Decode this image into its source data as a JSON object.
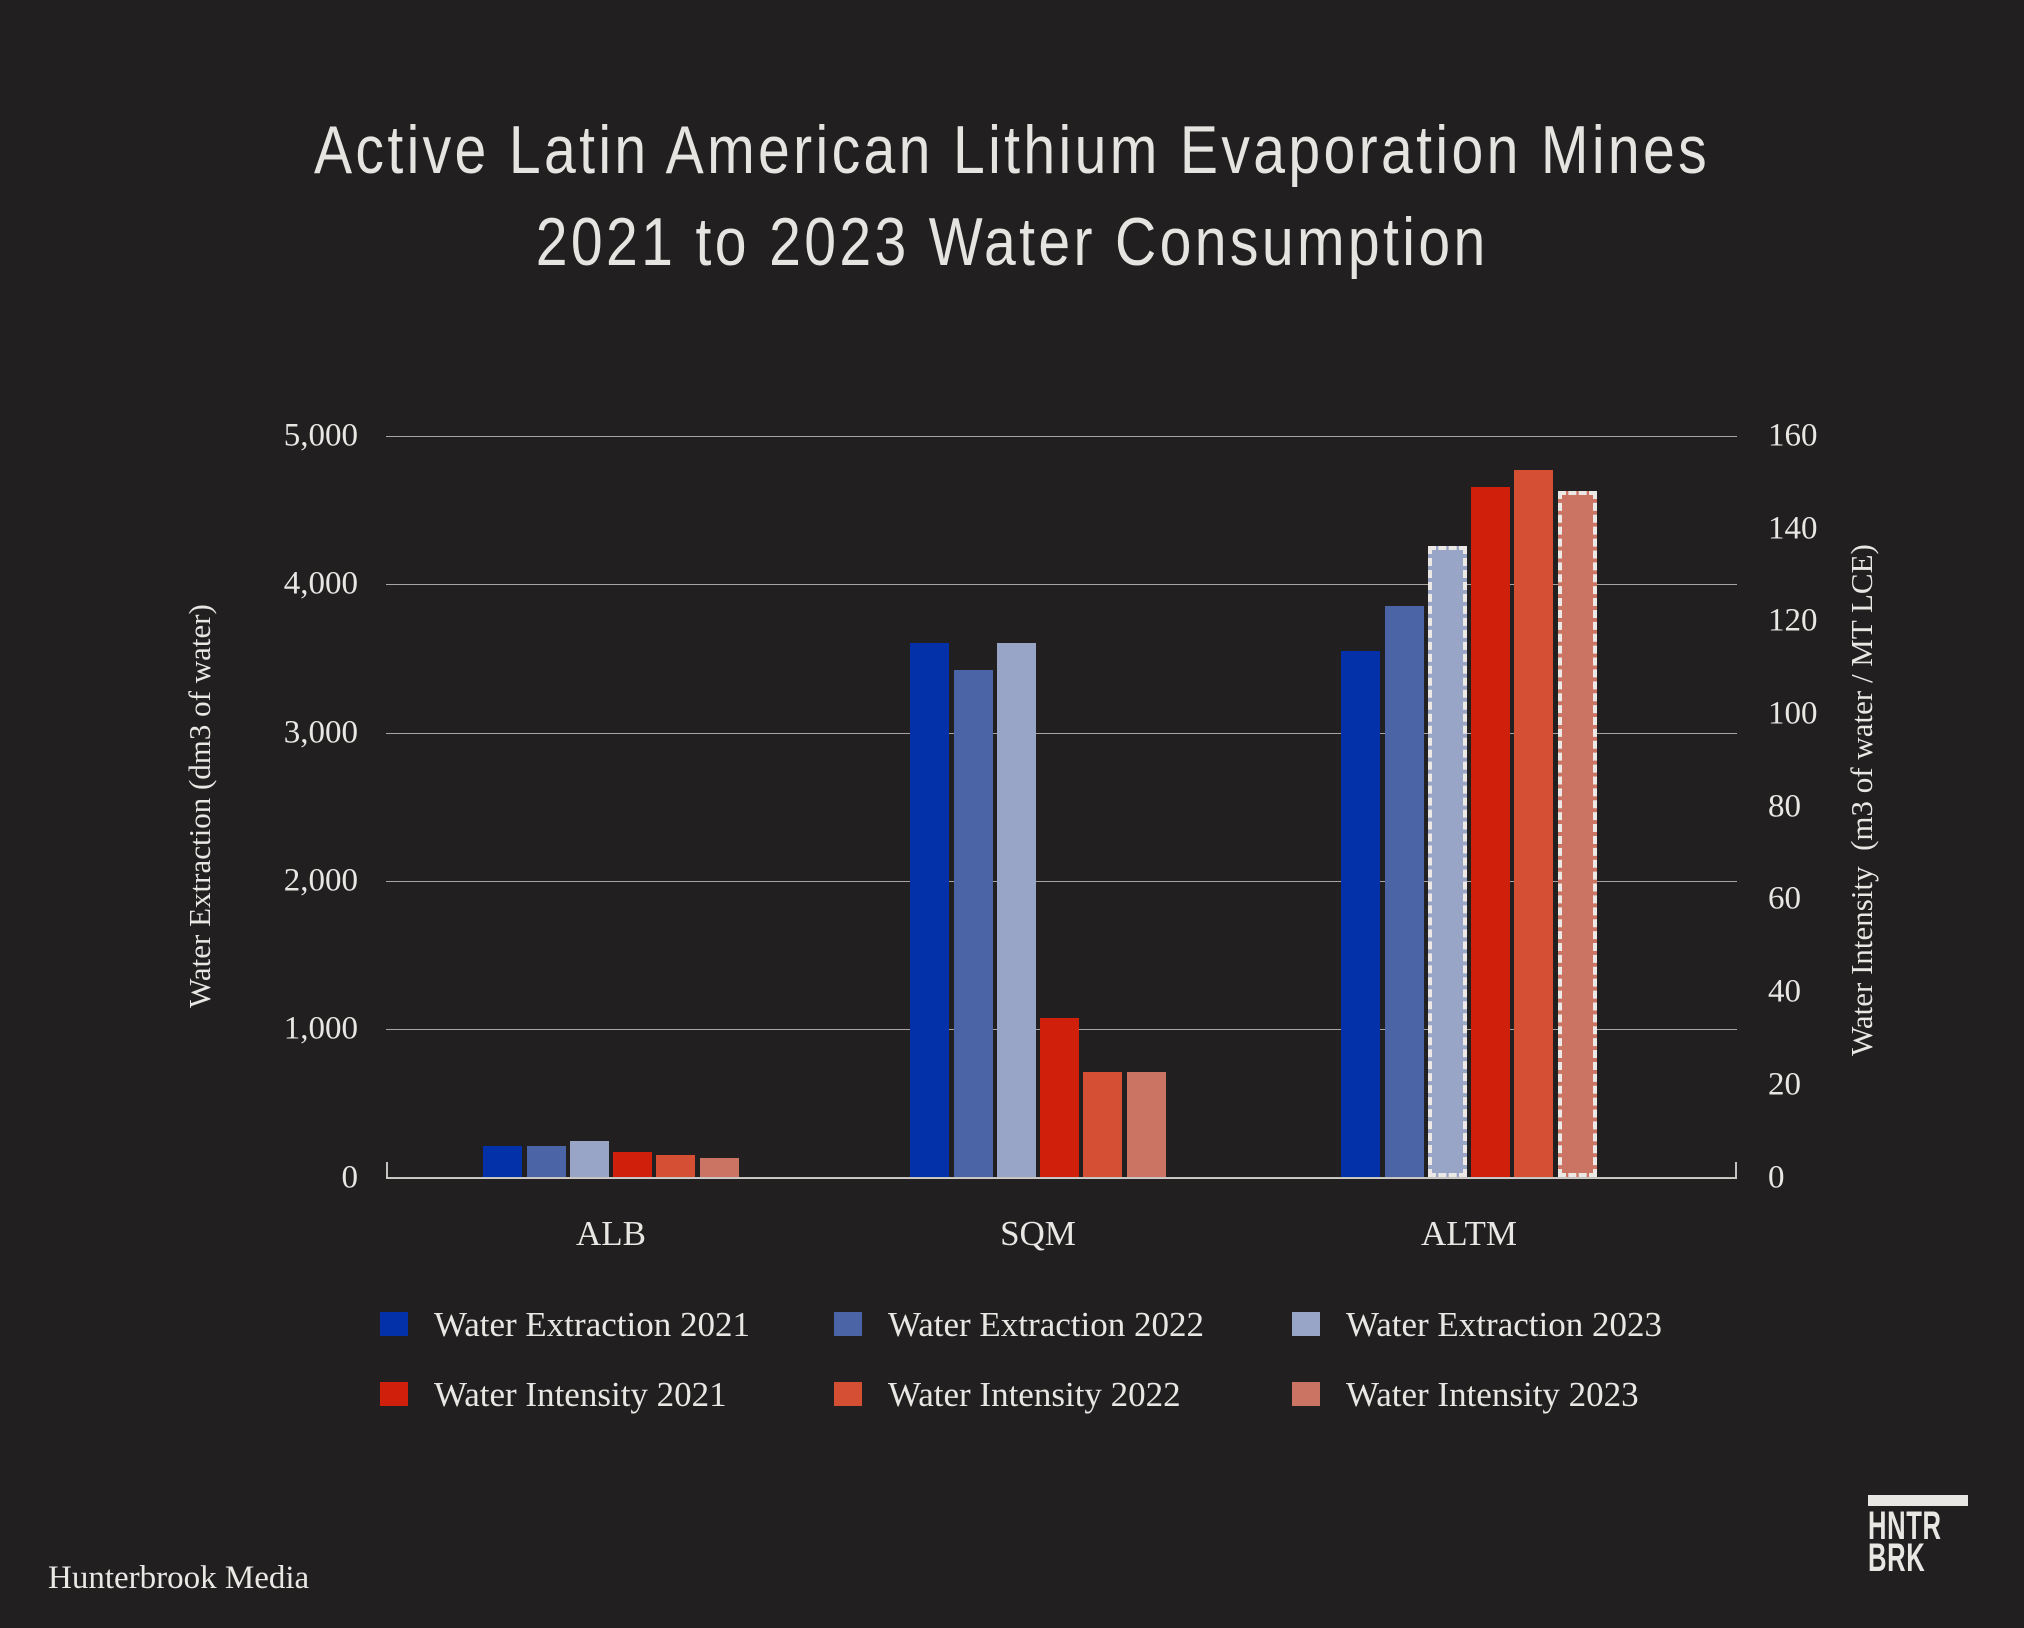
{
  "title": {
    "line1": "Active Latin American Lithium Evaporation Mines",
    "line2": "2021 to 2023 Water Consumption"
  },
  "chart_data": {
    "type": "bar",
    "title": "Active Latin American Lithium Evaporation Mines 2021 to 2023 Water Consumption",
    "categories": [
      "ALB",
      "SQM",
      "ALTM"
    ],
    "grid": "horizontal",
    "legend_position": "bottom",
    "background_color": "#211f1f",
    "text_color": "#e9e7e4",
    "left_axis": {
      "label": "Water Extraction (dm3 of water)",
      "min": 0,
      "max": 5000,
      "tick_labels": [
        "5,000",
        "4,000",
        "3,000",
        "2,000",
        "1,000",
        "0"
      ]
    },
    "right_axis": {
      "label": "Water Intensity  (m3 of water / MT LCE)",
      "min": 0,
      "max": 160,
      "tick_labels": [
        "160",
        "140",
        "120",
        "100",
        "80",
        "60",
        "40",
        "20",
        "0"
      ]
    },
    "series": [
      {
        "name": "Water Extraction 2021",
        "axis": "left",
        "color": "#0231a9",
        "values": [
          215,
          3605,
          3550
        ],
        "dashed": [
          false,
          false,
          false
        ]
      },
      {
        "name": "Water Extraction 2022",
        "axis": "left",
        "color": "#4b64a6",
        "values": [
          215,
          3420,
          3855
        ],
        "dashed": [
          false,
          false,
          false
        ]
      },
      {
        "name": "Water Extraction 2023",
        "axis": "left",
        "color": "#99a5c6",
        "values": [
          248,
          3605,
          4255
        ],
        "dashed": [
          false,
          false,
          true
        ]
      },
      {
        "name": "Water Intensity 2021",
        "axis": "right",
        "color": "#d01f0b",
        "values": [
          5.4,
          34.5,
          149.0
        ],
        "dashed": [
          false,
          false,
          false
        ]
      },
      {
        "name": "Water Intensity 2022",
        "axis": "right",
        "color": "#d54f34",
        "values": [
          4.8,
          22.8,
          152.7
        ],
        "dashed": [
          false,
          false,
          false
        ]
      },
      {
        "name": "Water Intensity 2023",
        "axis": "right",
        "color": "#cb7464",
        "values": [
          4.1,
          22.8,
          148.2
        ],
        "dashed": [
          false,
          false,
          true
        ]
      }
    ]
  },
  "footer": {
    "credit": "Hunterbrook Media"
  },
  "logo": {
    "line1": "HNTR",
    "line2": "BRK"
  }
}
